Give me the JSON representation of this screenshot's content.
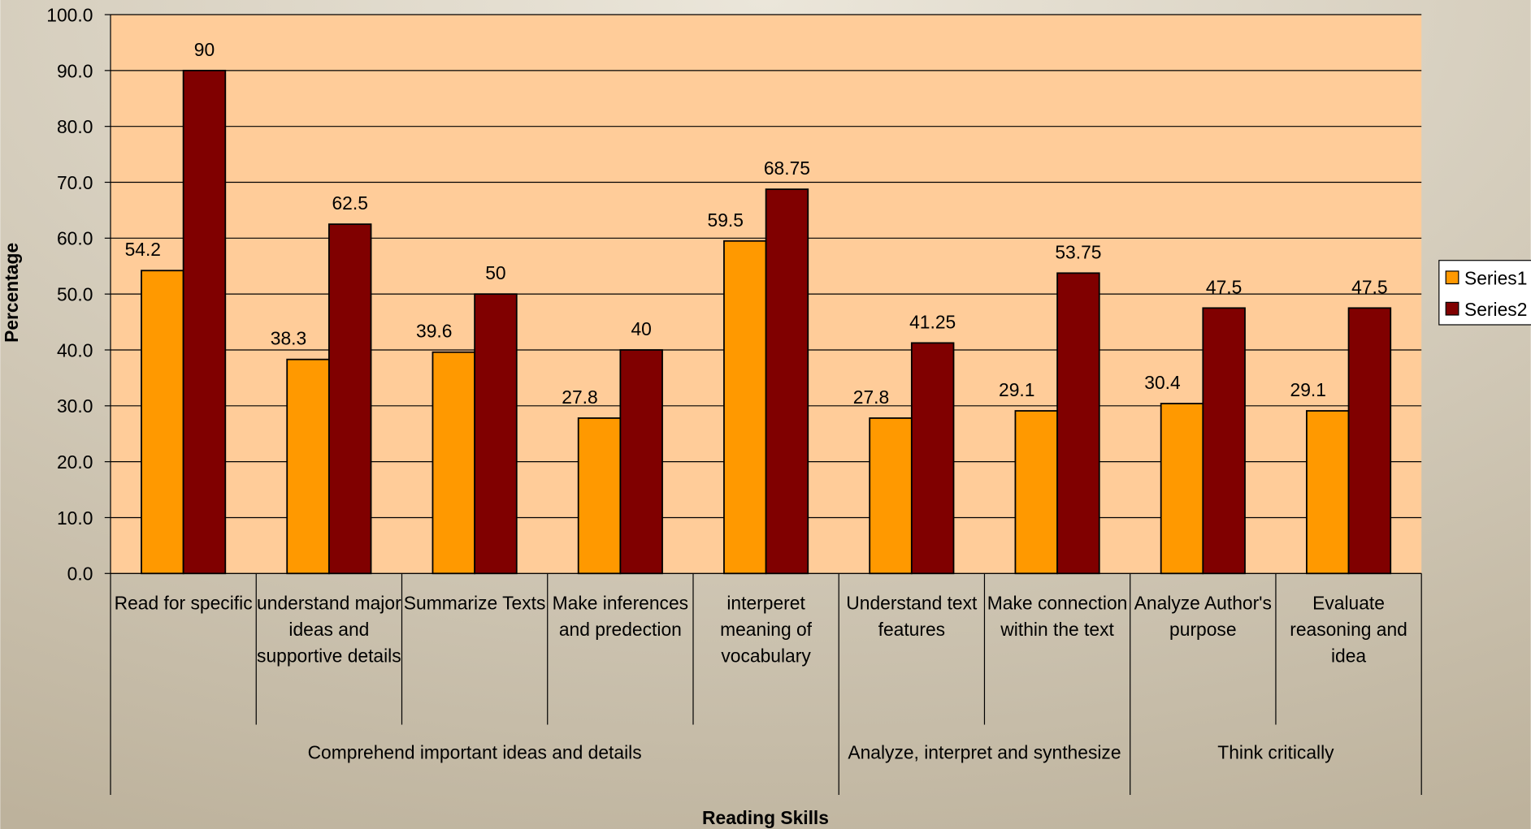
{
  "chart_data": {
    "type": "bar",
    "y_label": "Percentage",
    "x_label": "Reading Skills",
    "category_groups": [
      {
        "name": "Comprehend important ideas and details",
        "categories": [
          "Read for specific",
          "understand major ideas and supportive details",
          "Summarize Texts",
          "Make inferences and predection",
          "interperet meaning of vocabulary"
        ]
      },
      {
        "name": "Analyze, interpret and synthesize",
        "categories": [
          "Understand text features",
          "Make connection within the text"
        ]
      },
      {
        "name": "Think critically",
        "categories": [
          "Analyze Author's purpose",
          "Evaluate reasoning and idea"
        ]
      }
    ],
    "series": [
      {
        "name": "Series1",
        "color": "#FF9900",
        "values": [
          54.2,
          38.3,
          39.6,
          27.8,
          59.5,
          27.8,
          29.1,
          30.4,
          29.1
        ]
      },
      {
        "name": "Series2",
        "color": "#800000",
        "values": [
          90,
          62.5,
          50,
          40,
          68.75,
          41.25,
          53.75,
          47.5,
          47.5
        ]
      }
    ],
    "ylim": [
      0,
      100
    ],
    "yticks": [
      {
        "value": 0,
        "label": "0.0"
      },
      {
        "value": 10,
        "label": "10.0"
      },
      {
        "value": 20,
        "label": "20.0"
      },
      {
        "value": 30,
        "label": "30.0"
      },
      {
        "value": 40,
        "label": "40.0"
      },
      {
        "value": 50,
        "label": "50.0"
      },
      {
        "value": 60,
        "label": "60.0"
      },
      {
        "value": 70,
        "label": "70.0"
      },
      {
        "value": 80,
        "label": "80.0"
      },
      {
        "value": 90,
        "label": "90.0"
      },
      {
        "value": 100,
        "label": "100.0"
      }
    ],
    "grid": true,
    "legend": "right"
  }
}
